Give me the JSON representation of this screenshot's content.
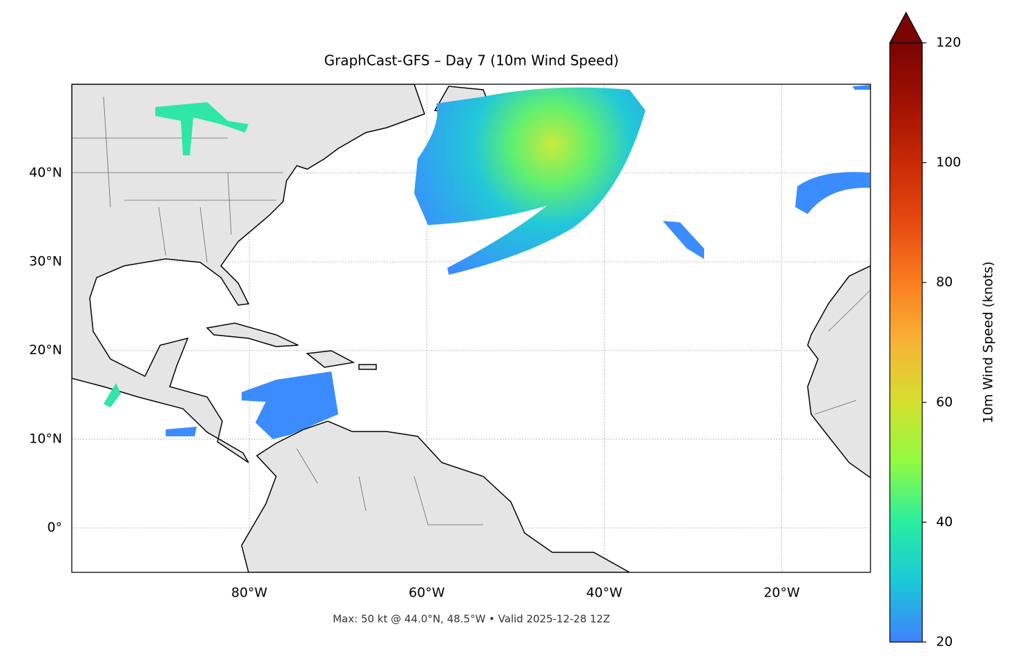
{
  "chart_data": {
    "type": "map",
    "title": "GraphCast-GFS – Day 7 (10m Wind Speed)",
    "annotation": "Max: 50 kt @ 44.0°N, 48.5°W • Valid 2025-12-28 12Z",
    "xlim": [
      -100,
      -10
    ],
    "ylim": [
      -5,
      50
    ],
    "xticks": [
      {
        "value": -80,
        "label": "80°W"
      },
      {
        "value": -60,
        "label": "60°W"
      },
      {
        "value": -40,
        "label": "40°W"
      },
      {
        "value": -20,
        "label": "20°W"
      }
    ],
    "yticks": [
      {
        "value": 0,
        "label": "0°"
      },
      {
        "value": 10,
        "label": "10°N"
      },
      {
        "value": 20,
        "label": "20°N"
      },
      {
        "value": 30,
        "label": "30°N"
      },
      {
        "value": 40,
        "label": "40°N"
      }
    ],
    "grid": true,
    "colorbar": {
      "label": "10m Wind Speed (knots)",
      "lim": [
        20,
        120
      ],
      "ticks": [
        20,
        40,
        60,
        80,
        100,
        120
      ],
      "extend": "max"
    }
  }
}
